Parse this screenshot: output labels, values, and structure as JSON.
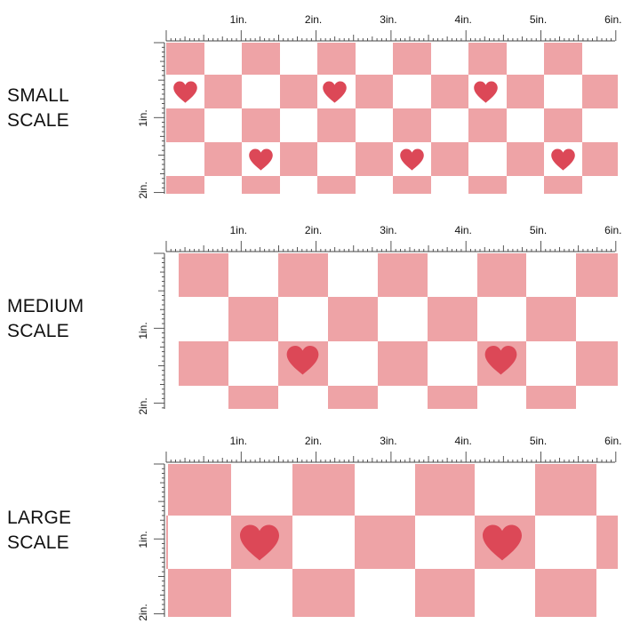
{
  "colors": {
    "pink": "#eea3a6",
    "heart": "#dc4857",
    "ruler": "#444444",
    "white": "#ffffff"
  },
  "ruler": {
    "x_labels": [
      "1in.",
      "2in.",
      "3in.",
      "4in.",
      "5in.",
      "6in."
    ],
    "y_labels": [
      "1in.",
      "2in."
    ]
  },
  "sections": [
    {
      "id": "small",
      "label_line1": "SMALL",
      "label_line2": "SCALE"
    },
    {
      "id": "medium",
      "label_line1": "MEDIUM",
      "label_line2": "SCALE"
    },
    {
      "id": "large",
      "label_line1": "LARGE",
      "label_line2": "SCALE"
    }
  ],
  "icons": [
    "heart-icon"
  ]
}
